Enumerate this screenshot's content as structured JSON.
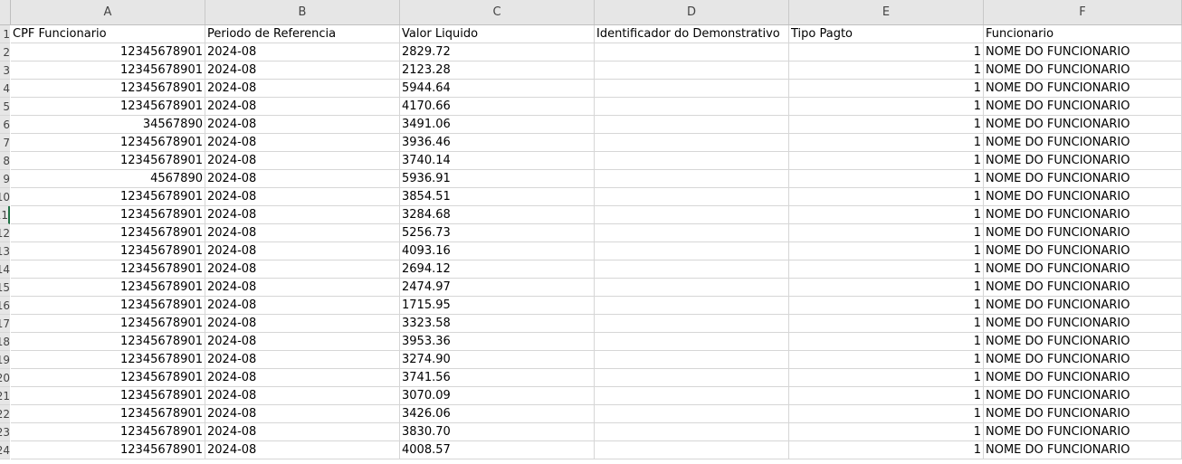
{
  "columns": [
    {
      "letter": "A"
    },
    {
      "letter": "B"
    },
    {
      "letter": "C"
    },
    {
      "letter": "D"
    },
    {
      "letter": "E"
    },
    {
      "letter": "F"
    }
  ],
  "row_numbers": [
    "1",
    "2",
    "3",
    "4",
    "5",
    "6",
    "7",
    "8",
    "9",
    "10",
    "11",
    "12",
    "13",
    "14",
    "15",
    "16",
    "17",
    "18",
    "19",
    "20",
    "21",
    "22",
    "23",
    "24"
  ],
  "header": {
    "a": "CPF Funcionario",
    "b": "Periodo de Referencia",
    "c": "Valor Liquido",
    "d": "Identificador do Demonstrativo",
    "e": "Tipo Pagto",
    "f": "Funcionario"
  },
  "rows": [
    {
      "a": "12345678901",
      "b": "2024-08",
      "c": "2829.72",
      "d": "",
      "e": "1",
      "f": "NOME DO FUNCIONARIO"
    },
    {
      "a": "12345678901",
      "b": "2024-08",
      "c": "2123.28",
      "d": "",
      "e": "1",
      "f": "NOME DO FUNCIONARIO"
    },
    {
      "a": "12345678901",
      "b": "2024-08",
      "c": "5944.64",
      "d": "",
      "e": "1",
      "f": "NOME DO FUNCIONARIO"
    },
    {
      "a": "12345678901",
      "b": "2024-08",
      "c": "4170.66",
      "d": "",
      "e": "1",
      "f": "NOME DO FUNCIONARIO"
    },
    {
      "a": "34567890",
      "b": "2024-08",
      "c": "3491.06",
      "d": "",
      "e": "1",
      "f": "NOME DO FUNCIONARIO"
    },
    {
      "a": "12345678901",
      "b": "2024-08",
      "c": "3936.46",
      "d": "",
      "e": "1",
      "f": "NOME DO FUNCIONARIO"
    },
    {
      "a": "12345678901",
      "b": "2024-08",
      "c": "3740.14",
      "d": "",
      "e": "1",
      "f": "NOME DO FUNCIONARIO"
    },
    {
      "a": "4567890",
      "b": "2024-08",
      "c": "5936.91",
      "d": "",
      "e": "1",
      "f": "NOME DO FUNCIONARIO"
    },
    {
      "a": "12345678901",
      "b": "2024-08",
      "c": "3854.51",
      "d": "",
      "e": "1",
      "f": "NOME DO FUNCIONARIO"
    },
    {
      "a": "12345678901",
      "b": "2024-08",
      "c": "3284.68",
      "d": "",
      "e": "1",
      "f": "NOME DO FUNCIONARIO"
    },
    {
      "a": "12345678901",
      "b": "2024-08",
      "c": "5256.73",
      "d": "",
      "e": "1",
      "f": "NOME DO FUNCIONARIO"
    },
    {
      "a": "12345678901",
      "b": "2024-08",
      "c": "4093.16",
      "d": "",
      "e": "1",
      "f": "NOME DO FUNCIONARIO"
    },
    {
      "a": "12345678901",
      "b": "2024-08",
      "c": "2694.12",
      "d": "",
      "e": "1",
      "f": "NOME DO FUNCIONARIO"
    },
    {
      "a": "12345678901",
      "b": "2024-08",
      "c": "2474.97",
      "d": "",
      "e": "1",
      "f": "NOME DO FUNCIONARIO"
    },
    {
      "a": "12345678901",
      "b": "2024-08",
      "c": "1715.95",
      "d": "",
      "e": "1",
      "f": "NOME DO FUNCIONARIO"
    },
    {
      "a": "12345678901",
      "b": "2024-08",
      "c": "3323.58",
      "d": "",
      "e": "1",
      "f": "NOME DO FUNCIONARIO"
    },
    {
      "a": "12345678901",
      "b": "2024-08",
      "c": "3953.36",
      "d": "",
      "e": "1",
      "f": "NOME DO FUNCIONARIO"
    },
    {
      "a": "12345678901",
      "b": "2024-08",
      "c": "3274.90",
      "d": "",
      "e": "1",
      "f": "NOME DO FUNCIONARIO"
    },
    {
      "a": "12345678901",
      "b": "2024-08",
      "c": "3741.56",
      "d": "",
      "e": "1",
      "f": "NOME DO FUNCIONARIO"
    },
    {
      "a": "12345678901",
      "b": "2024-08",
      "c": "3070.09",
      "d": "",
      "e": "1",
      "f": "NOME DO FUNCIONARIO"
    },
    {
      "a": "12345678901",
      "b": "2024-08",
      "c": "3426.06",
      "d": "",
      "e": "1",
      "f": "NOME DO FUNCIONARIO"
    },
    {
      "a": "12345678901",
      "b": "2024-08",
      "c": "3830.70",
      "d": "",
      "e": "1",
      "f": "NOME DO FUNCIONARIO"
    },
    {
      "a": "12345678901",
      "b": "2024-08",
      "c": "4008.57",
      "d": "",
      "e": "1",
      "f": "NOME DO FUNCIONARIO"
    }
  ],
  "colors": {
    "header_bg": "#e6e6e6",
    "grid_line": "#d6d6d6",
    "active_row_marker": "#217346"
  }
}
